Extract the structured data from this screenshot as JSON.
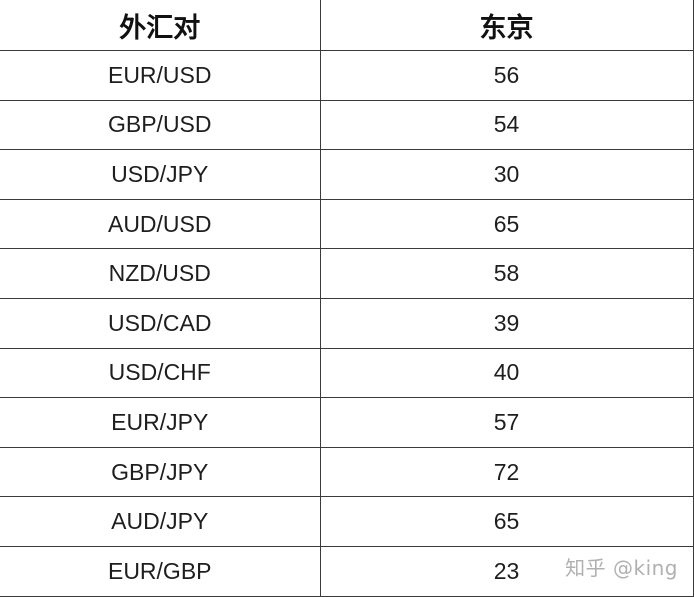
{
  "table": {
    "headers": [
      "外汇对",
      "东京"
    ],
    "rows": [
      {
        "pair": "EUR/USD",
        "tokyo": "56"
      },
      {
        "pair": "GBP/USD",
        "tokyo": "54"
      },
      {
        "pair": "USD/JPY",
        "tokyo": "30"
      },
      {
        "pair": "AUD/USD",
        "tokyo": "65"
      },
      {
        "pair": "NZD/USD",
        "tokyo": "58"
      },
      {
        "pair": "USD/CAD",
        "tokyo": "39"
      },
      {
        "pair": "USD/CHF",
        "tokyo": "40"
      },
      {
        "pair": "EUR/JPY",
        "tokyo": "57"
      },
      {
        "pair": "GBP/JPY",
        "tokyo": "72"
      },
      {
        "pair": "AUD/JPY",
        "tokyo": "65"
      },
      {
        "pair": "EUR/GBP",
        "tokyo": "23"
      }
    ]
  },
  "watermark": "知乎 @king"
}
